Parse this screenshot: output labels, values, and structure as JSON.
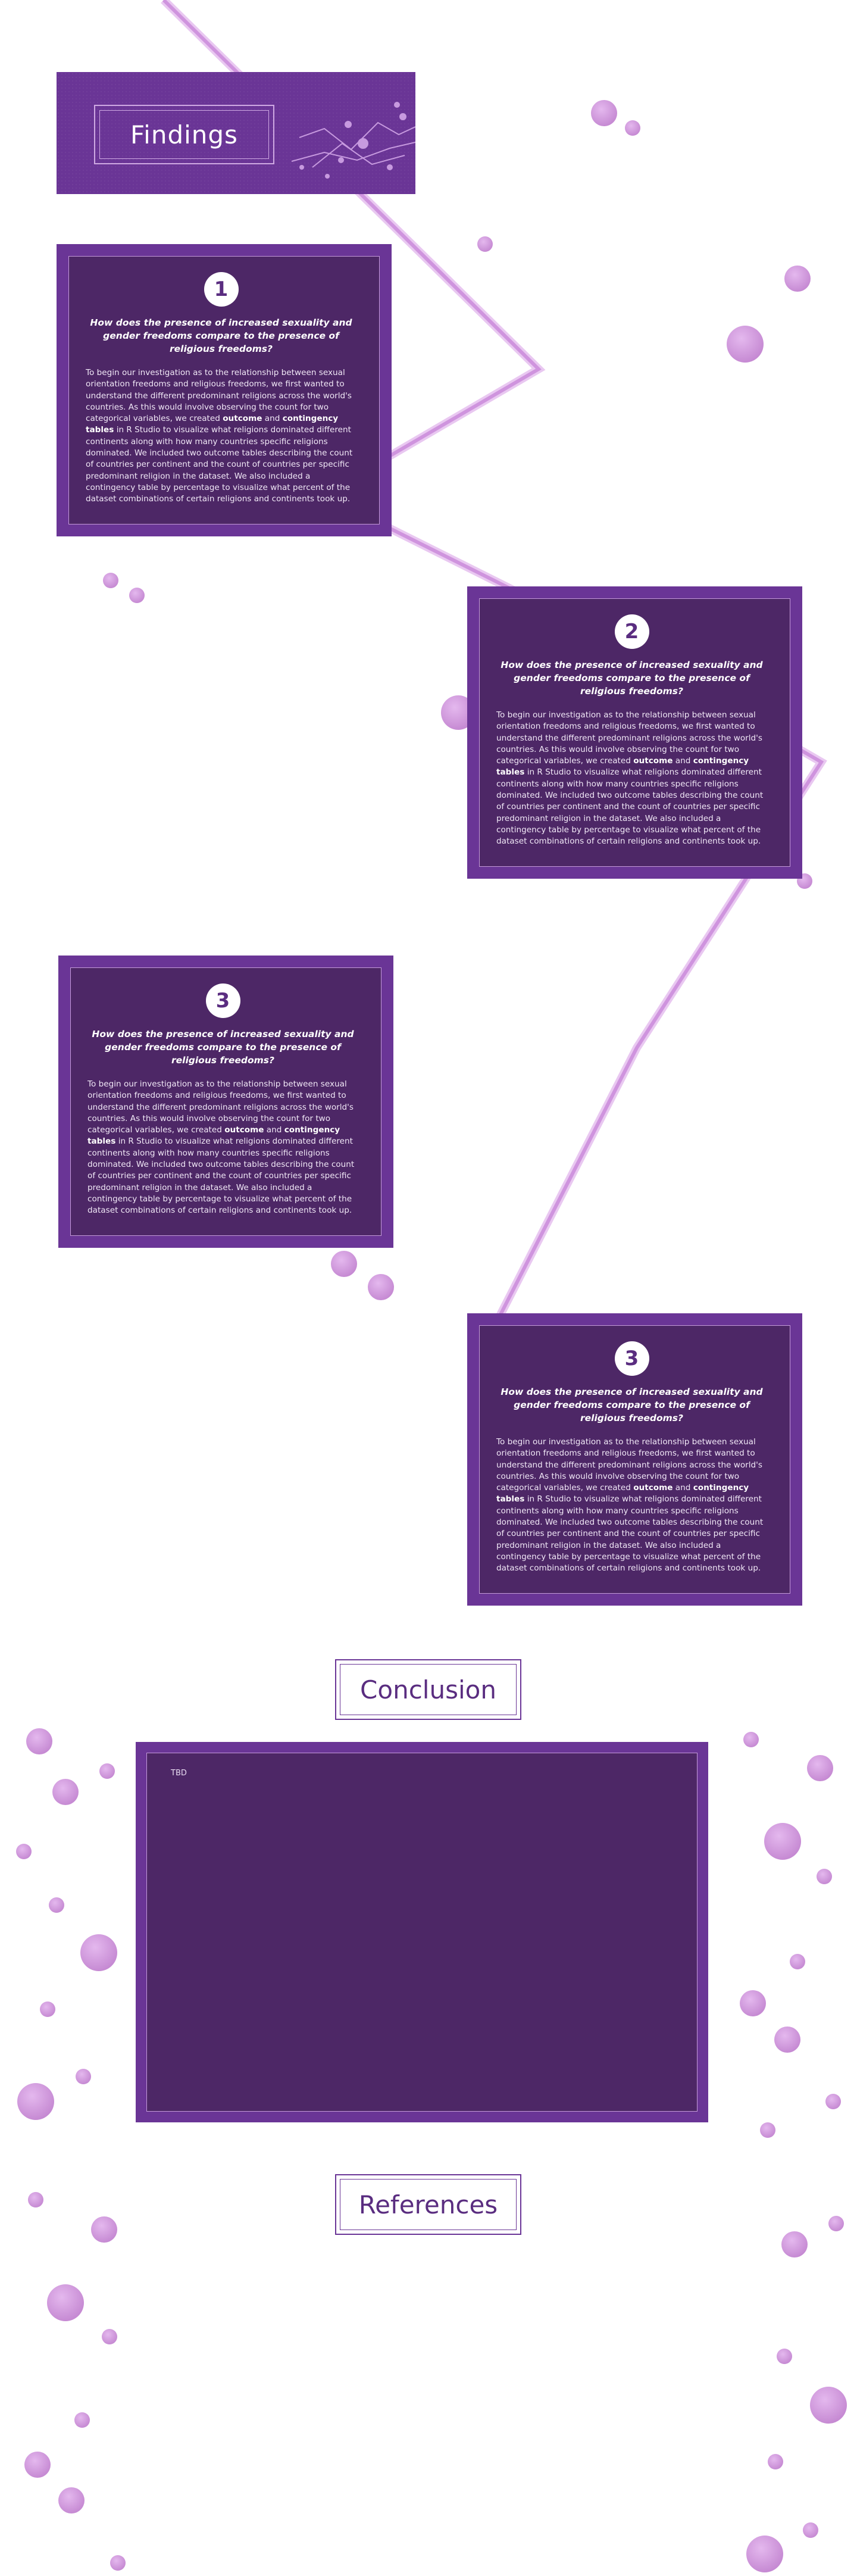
{
  "findings": {
    "title": "Findings"
  },
  "findings_cards": [
    {
      "number": "1",
      "question": "How does the presence of increased sexuality and gender freedoms compare to the presence of religious freedoms?",
      "body_before": "To begin our investigation as to the relationship between sexual orientation freedoms and religious freedoms, we first wanted to understand the different predominant religions across the world's countries. As this would involve observing the count for two categorical variables, we created ",
      "bold_1": "outcome",
      "body_and": " and ",
      "bold_2": "contingency tables",
      "body_after": " in R Studio to visualize what religions dominated different continents along with how many countries specific religions dominated. We included two outcome tables describing the count of countries per continent and the count of countries per specific predominant religion in the dataset. We also included a contingency table by percentage to visualize what percent of the dataset combinations of certain religions and continents took up."
    },
    {
      "number": "2",
      "question": "How does the presence of increased sexuality and gender freedoms compare to the presence of religious freedoms?",
      "body_before": "To begin our investigation as to the relationship between sexual orientation freedoms and religious freedoms, we first wanted to understand the different predominant religions across the world's countries. As this would involve observing the count for two categorical variables, we created ",
      "bold_1": "outcome",
      "body_and": " and ",
      "bold_2": "contingency tables",
      "body_after": " in R Studio to visualize what religions dominated different continents along with how many countries specific religions dominated. We included two outcome tables describing the count of countries per continent and the count of countries per specific predominant religion in the dataset. We also included a contingency table by percentage to visualize what percent of the dataset combinations of certain religions and continents took up."
    },
    {
      "number": "3",
      "question": "How does the presence of increased sexuality and gender freedoms compare to the presence of religious freedoms?",
      "body_before": "To begin our investigation as to the relationship between sexual orientation freedoms and religious freedoms, we first wanted to understand the different predominant religions across the world's countries. As this would involve observing the count for two categorical variables, we created ",
      "bold_1": "outcome",
      "body_and": " and ",
      "bold_2": "contingency tables",
      "body_after": " in R Studio to visualize what religions dominated different continents along with how many countries specific religions dominated. We included two outcome tables describing the count of countries per continent and the count of countries per specific predominant religion in the dataset. We also included a contingency table by percentage to visualize what percent of the dataset combinations of certain religions and continents took up."
    },
    {
      "number": "3",
      "question": "How does the presence of increased sexuality and gender freedoms compare to the presence of religious freedoms?",
      "body_before": "To begin our investigation as to the relationship between sexual orientation freedoms and religious freedoms, we first wanted to understand the different predominant religions across the world's countries. As this would involve observing the count for two categorical variables, we created ",
      "bold_1": "outcome",
      "body_and": " and ",
      "bold_2": "contingency tables",
      "body_after": " in R Studio to visualize what religions dominated different continents along with how many countries specific religions dominated. We included two outcome tables describing the count of countries per continent and the count of countries per specific predominant religion in the dataset. We also included a contingency table by percentage to visualize what percent of the dataset combinations of certain religions and continents took up."
    }
  ],
  "conclusion": {
    "title": "Conclusion",
    "body": "TBD"
  },
  "references": {
    "title": "References"
  },
  "colors": {
    "card_outer": "#6a3596",
    "card_inner": "#4d2766",
    "accent_lilac": "#d6a3e0",
    "line_lilac": "#d9a8e6",
    "heading_text": "#5a2d80"
  }
}
